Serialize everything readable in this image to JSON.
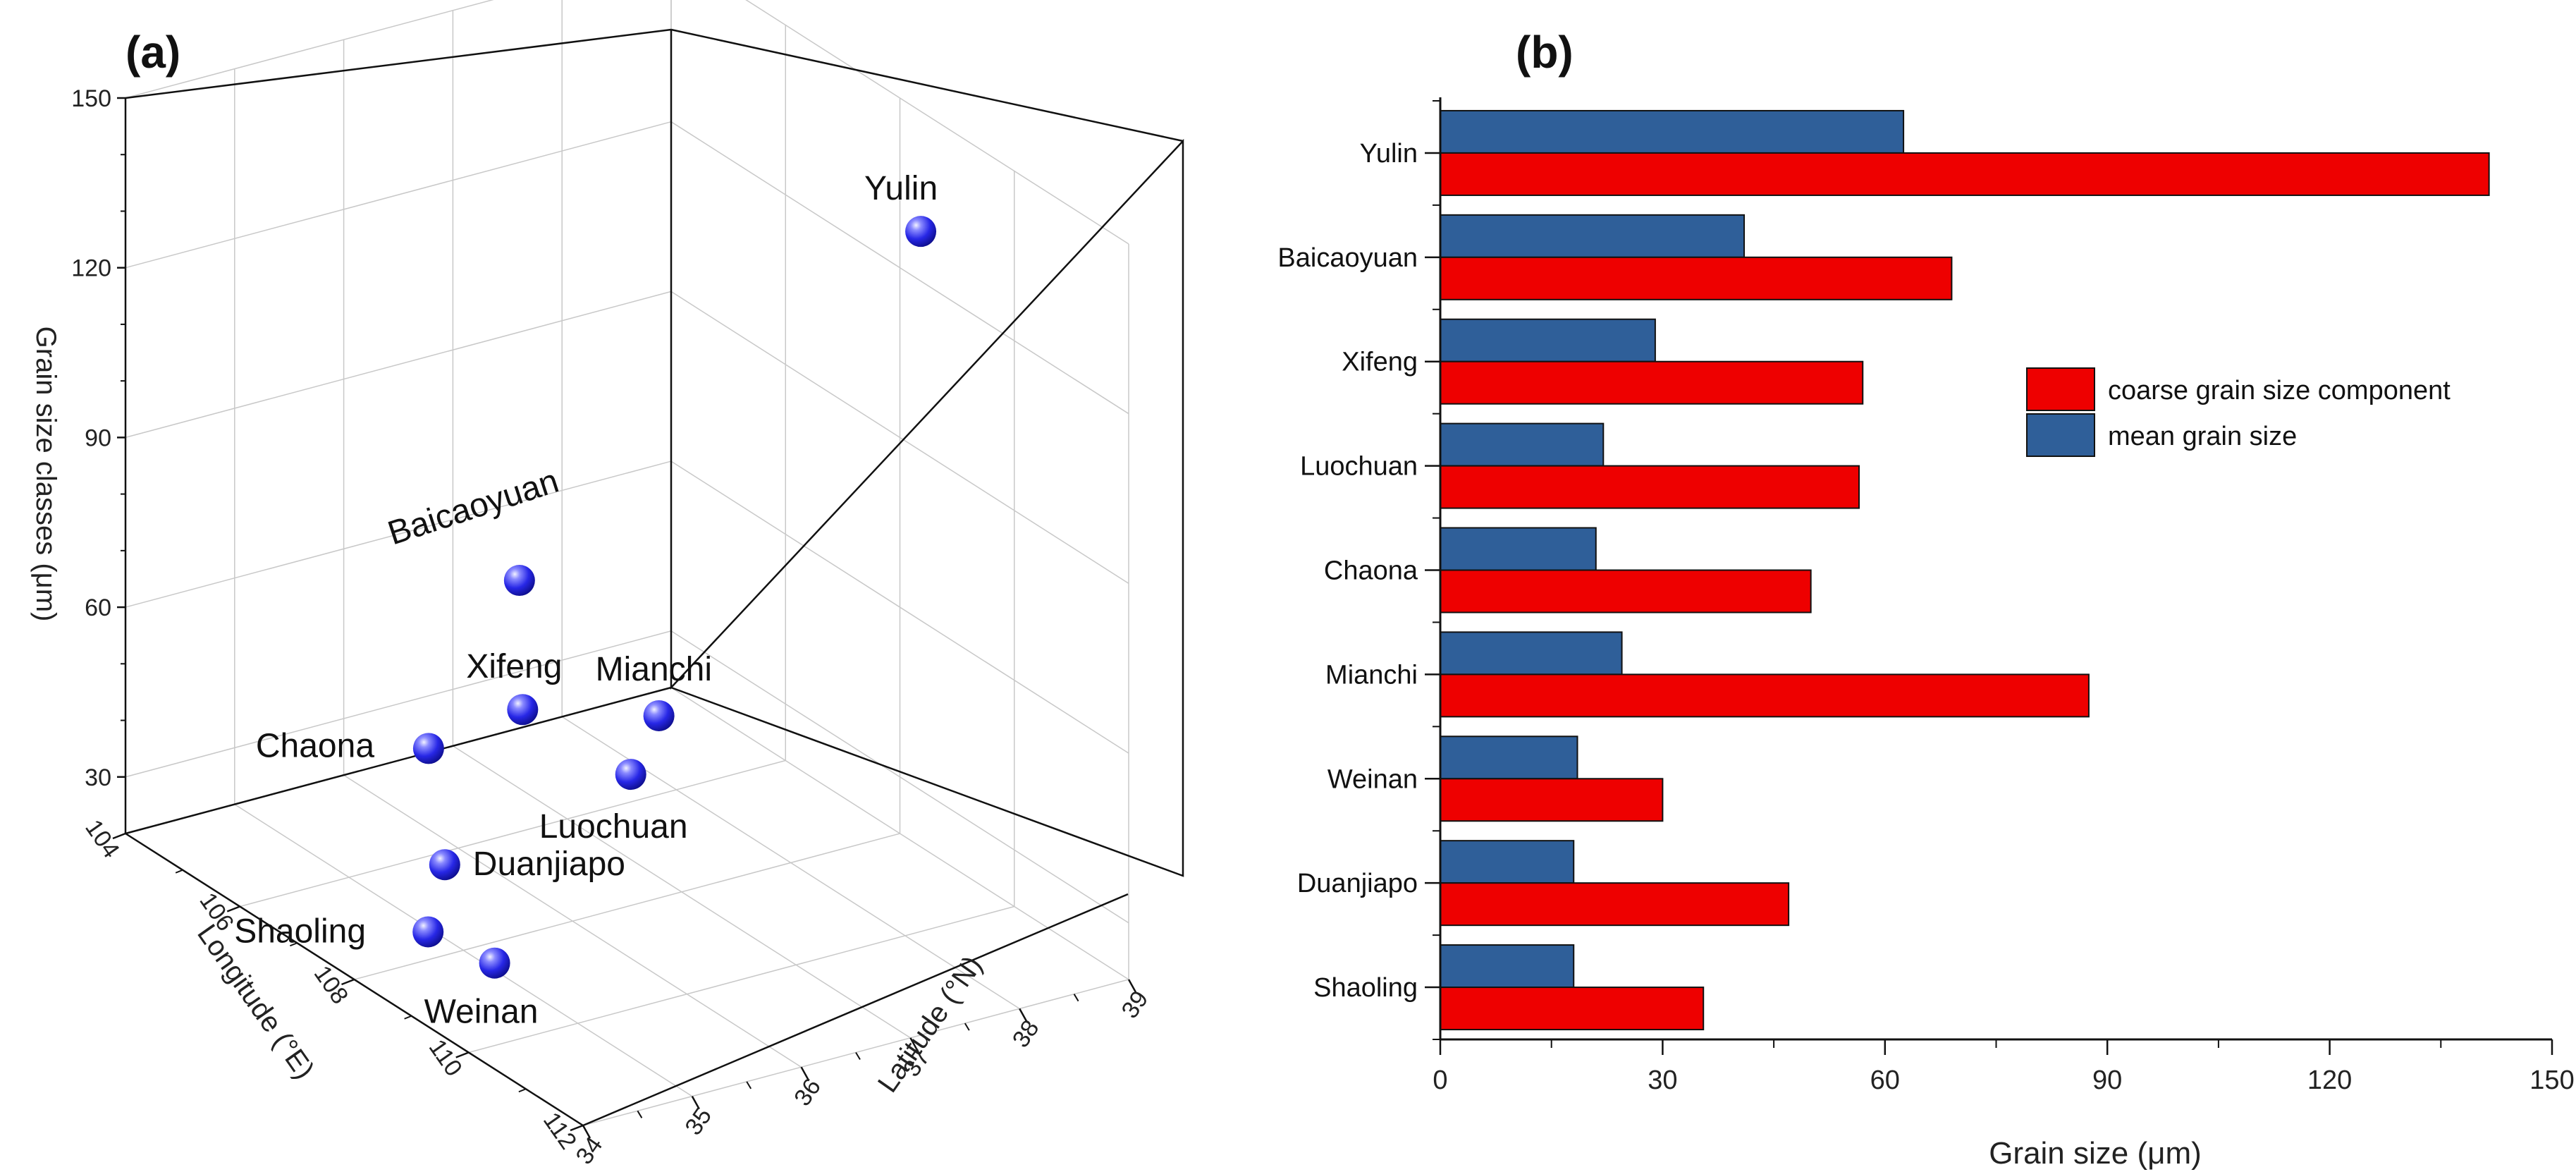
{
  "panel_a": {
    "label": "(a)",
    "chart_data": {
      "type": "scatter",
      "points": [
        {
          "name": "Yulin",
          "longitude": 109.7,
          "latitude": 38.3,
          "grain_size": 141
        },
        {
          "name": "Baicaoyuan",
          "longitude": 106.5,
          "latitude": 36.3,
          "grain_size": 69
        },
        {
          "name": "Mianchi",
          "longitude": 111.8,
          "latitude": 34.8,
          "grain_size": 87
        },
        {
          "name": "Xifeng",
          "longitude": 107.7,
          "latitude": 35.7,
          "grain_size": 57
        },
        {
          "name": "Chaona",
          "longitude": 107.2,
          "latitude": 35.1,
          "grain_size": 50
        },
        {
          "name": "Luochuan",
          "longitude": 109.4,
          "latitude": 35.8,
          "grain_size": 56
        },
        {
          "name": "Duanjiapo",
          "longitude": 109.2,
          "latitude": 34.2,
          "grain_size": 47
        },
        {
          "name": "Shaoling",
          "longitude": 109.1,
          "latitude": 34.1,
          "grain_size": 35
        },
        {
          "name": "Weinan",
          "longitude": 109.5,
          "latitude": 34.5,
          "grain_size": 30
        }
      ],
      "z_axis": {
        "title": "Grain size classes (μm)",
        "ticks": [
          "30",
          "60",
          "90",
          "120",
          "150"
        ],
        "range": [
          20,
          150
        ]
      },
      "x_axis": {
        "title": "Longitude (°E)",
        "ticks": [
          "104",
          "106",
          "108",
          "110",
          "112"
        ],
        "range": [
          104,
          112
        ]
      },
      "y_axis": {
        "title": "Latitude (°N)",
        "ticks": [
          "34",
          "35",
          "36",
          "37",
          "38",
          "39"
        ],
        "range": [
          34,
          39
        ]
      },
      "point_color": "#3a3aee"
    }
  },
  "panel_b": {
    "label": "(b)",
    "chart_data": {
      "type": "bar",
      "orientation": "horizontal",
      "categories": [
        "Yulin",
        "Baicaoyuan",
        "Xifeng",
        "Luochuan",
        "Chaona",
        "Mianchi",
        "Weinan",
        "Duanjiapo",
        "Shaoling"
      ],
      "series": [
        {
          "name": "mean grain size",
          "color": "#2f5f99",
          "values": [
            62.5,
            41,
            29,
            22,
            21,
            24.5,
            18.5,
            18,
            18
          ]
        },
        {
          "name": "coarse grain size component",
          "color": "#ee0000",
          "values": [
            141.5,
            69,
            57,
            56.5,
            50,
            87.5,
            30,
            47,
            35.5
          ]
        }
      ],
      "xlabel": "Grain size (μm)",
      "ylabel": "",
      "xlim": [
        0,
        150
      ],
      "x_ticks": [
        "0",
        "30",
        "60",
        "90",
        "120",
        "150"
      ],
      "legend": [
        {
          "label": "coarse grain size component",
          "color": "#ee0000"
        },
        {
          "label": "mean grain size",
          "color": "#2f5f99"
        }
      ],
      "legend_position": "right"
    }
  }
}
